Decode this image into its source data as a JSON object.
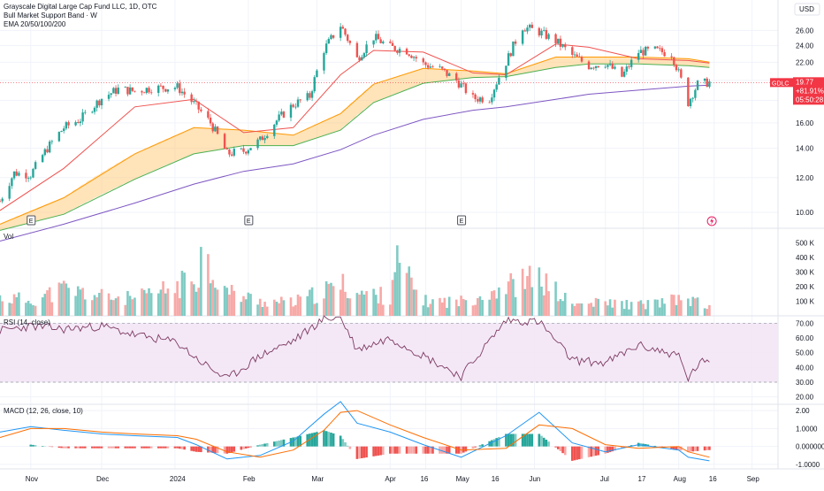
{
  "header": {
    "title": "Grayscale Digital Large Cap Fund LLC, 1D, OTC",
    "subtitle_1": "Bull Market Support Band · W",
    "subtitle_2": "EMA 20/50/100/200",
    "currency": "USD"
  },
  "colors": {
    "up": "#26a69a",
    "down": "#ef5350",
    "vol_up": "#80cbc4",
    "vol_down": "#f7a9a7",
    "ema20": "#ef5350",
    "ema50": "#ff9800",
    "ema100": "#4caf50",
    "ema200": "#7e57c2",
    "band_fill": "#ffcc80",
    "band_edge": "#26a69a",
    "rsi_line": "#7e3a63",
    "rsi_fill": "#f3e5f5",
    "macd_line": "#2196f3",
    "signal_line": "#ff6d00",
    "last_price": "#f23645",
    "grid": "#f0f3fa",
    "axis_text": "#131722"
  },
  "last_price_label": {
    "ticker": "GDLC",
    "price": "19.77",
    "change": "+81.91%",
    "countdown": "05:50:28"
  },
  "earnings_markers": [
    {
      "label": "E",
      "date": "2023-11-01"
    },
    {
      "label": "E",
      "date": "2024-02-01"
    },
    {
      "label": "E",
      "date": "2024-05-01"
    }
  ],
  "event_marker": {
    "icon": "lightning-icon",
    "date": "2024-08-15"
  },
  "time_axis": {
    "labels": [
      {
        "text": "Nov",
        "date": "2023-11-01"
      },
      {
        "text": "Dec",
        "date": "2023-12-01"
      },
      {
        "text": "2024",
        "date": "2024-01-01"
      },
      {
        "text": "Feb",
        "date": "2024-02-01"
      },
      {
        "text": "Mar",
        "date": "2024-03-01"
      },
      {
        "text": "Apr",
        "date": "2024-04-01"
      },
      {
        "text": "16",
        "date": "2024-04-16"
      },
      {
        "text": "May",
        "date": "2024-05-01"
      },
      {
        "text": "16",
        "date": "2024-05-16"
      },
      {
        "text": "Jun",
        "date": "2024-06-01"
      },
      {
        "text": "Jul",
        "date": "2024-07-01"
      },
      {
        "text": "17",
        "date": "2024-07-17"
      },
      {
        "text": "Aug",
        "date": "2024-08-01"
      },
      {
        "text": "16",
        "date": "2024-08-16"
      },
      {
        "text": "Sep",
        "date": "2024-09-01"
      }
    ]
  },
  "chart_data": [
    {
      "type": "candlestick",
      "pane": "price",
      "x_start": "2023-10-19",
      "x_end": "2024-09-12",
      "scale": "log",
      "ylim": [
        9.2,
        30.5
      ],
      "y_ticks": [
        10.0,
        12.0,
        14.0,
        16.0,
        18.0,
        20.0,
        22.0,
        24.0,
        26.0
      ],
      "y_tick_labels": [
        "10.00",
        "12.00",
        "14.00",
        "16.00",
        "18.00",
        "20.00",
        "22.00",
        "24.00",
        "26.00"
      ],
      "close_series": {
        "x": [
          "2023-10-19",
          "2023-10-25",
          "2023-11-01",
          "2023-11-08",
          "2023-11-15",
          "2023-11-22",
          "2023-12-01",
          "2023-12-08",
          "2023-12-15",
          "2023-12-22",
          "2024-01-02",
          "2024-01-09",
          "2024-01-16",
          "2024-01-23",
          "2024-01-30",
          "2024-02-06",
          "2024-02-13",
          "2024-02-20",
          "2024-02-27",
          "2024-03-04",
          "2024-03-11",
          "2024-03-18",
          "2024-03-25",
          "2024-04-01",
          "2024-04-08",
          "2024-04-15",
          "2024-04-22",
          "2024-04-29",
          "2024-05-06",
          "2024-05-13",
          "2024-05-20",
          "2024-05-27",
          "2024-06-03",
          "2024-06-10",
          "2024-06-17",
          "2024-06-24",
          "2024-07-01",
          "2024-07-08",
          "2024-07-15",
          "2024-07-22",
          "2024-07-29",
          "2024-08-05",
          "2024-08-09",
          "2024-08-14"
        ],
        "y": [
          10.6,
          12.3,
          12.2,
          14.0,
          15.6,
          16.3,
          18.2,
          19.1,
          18.9,
          19.2,
          19.3,
          17.7,
          16.0,
          13.6,
          13.8,
          14.6,
          16.2,
          17.6,
          18.4,
          23.5,
          26.7,
          22.4,
          25.1,
          23.8,
          23.4,
          21.8,
          21.2,
          20.0,
          18.2,
          18.2,
          22.0,
          26.5,
          25.8,
          24.6,
          22.8,
          21.6,
          21.9,
          20.4,
          23.2,
          23.4,
          23.0,
          17.8,
          19.6,
          19.8
        ]
      },
      "last_price": 19.77
    },
    {
      "type": "line",
      "pane": "price",
      "series": [
        {
          "name": "EMA 20",
          "x": [
            "2023-10-19",
            "2023-11-15",
            "2023-12-15",
            "2024-01-09",
            "2024-01-30",
            "2024-02-20",
            "2024-03-11",
            "2024-03-25",
            "2024-04-15",
            "2024-05-06",
            "2024-05-20",
            "2024-06-10",
            "2024-06-24",
            "2024-07-15",
            "2024-08-05",
            "2024-08-14"
          ],
          "y": [
            10.1,
            12.6,
            17.4,
            18.1,
            15.2,
            15.6,
            20.6,
            23.4,
            23.2,
            20.8,
            20.6,
            24.2,
            23.8,
            22.4,
            22.2,
            21.9
          ]
        },
        {
          "name": "EMA 50",
          "x": [
            "2023-10-19",
            "2023-11-15",
            "2023-12-15",
            "2024-01-09",
            "2024-01-30",
            "2024-02-20",
            "2024-03-11",
            "2024-03-25",
            "2024-04-15",
            "2024-05-06",
            "2024-05-20",
            "2024-06-10",
            "2024-06-24",
            "2024-07-15",
            "2024-08-05",
            "2024-08-14"
          ],
          "y": [
            9.4,
            10.8,
            13.6,
            15.6,
            15.4,
            15.0,
            16.8,
            19.6,
            21.3,
            21.0,
            20.7,
            22.6,
            22.6,
            22.6,
            22.4,
            22.0
          ]
        },
        {
          "name": "EMA 100",
          "x": [
            "2023-10-19",
            "2023-11-15",
            "2023-12-15",
            "2024-01-09",
            "2024-01-30",
            "2024-02-20",
            "2024-03-11",
            "2024-03-25",
            "2024-04-15",
            "2024-05-06",
            "2024-05-20",
            "2024-06-10",
            "2024-06-24",
            "2024-07-15",
            "2024-08-05",
            "2024-08-14"
          ],
          "y": [
            9.1,
            9.9,
            11.9,
            13.6,
            14.2,
            14.2,
            15.4,
            17.8,
            19.7,
            20.3,
            20.4,
            21.4,
            21.8,
            21.8,
            21.6,
            21.4
          ]
        },
        {
          "name": "EMA 200",
          "x": [
            "2023-10-19",
            "2023-11-15",
            "2023-12-15",
            "2024-01-09",
            "2024-01-30",
            "2024-02-20",
            "2024-03-11",
            "2024-03-25",
            "2024-04-15",
            "2024-05-06",
            "2024-05-20",
            "2024-06-10",
            "2024-06-24",
            "2024-07-15",
            "2024-08-05",
            "2024-08-14"
          ],
          "y": [
            8.6,
            9.4,
            10.5,
            11.6,
            12.4,
            12.9,
            13.9,
            15.0,
            16.3,
            17.1,
            17.4,
            18.1,
            18.6,
            19.0,
            19.4,
            19.5
          ]
        }
      ]
    },
    {
      "type": "bar",
      "pane": "volume",
      "ylim": [
        0,
        600000
      ],
      "y_ticks": [
        100000,
        200000,
        300000,
        400000,
        500000
      ],
      "y_tick_labels": [
        "100 K",
        "200 K",
        "300 K",
        "400 K",
        "500 K"
      ],
      "x": [
        "2023-10-19",
        "2023-11-01",
        "2023-11-15",
        "2023-12-01",
        "2023-12-15",
        "2024-01-02",
        "2024-01-10",
        "2024-01-12",
        "2024-01-23",
        "2024-02-06",
        "2024-02-20",
        "2024-03-04",
        "2024-03-11",
        "2024-03-18",
        "2024-04-01",
        "2024-04-03",
        "2024-04-15",
        "2024-05-01",
        "2024-05-20",
        "2024-06-03",
        "2024-06-17",
        "2024-07-01",
        "2024-07-15",
        "2024-08-05",
        "2024-08-14"
      ],
      "values": [
        150000,
        130000,
        220000,
        160000,
        140000,
        240000,
        330000,
        510000,
        200000,
        120000,
        110000,
        200000,
        260000,
        190000,
        160000,
        460000,
        120000,
        120000,
        250000,
        310000,
        90000,
        110000,
        90000,
        140000,
        70000
      ]
    },
    {
      "type": "line",
      "pane": "rsi",
      "title": "RSI (14, close)",
      "ylim": [
        15,
        75
      ],
      "y_ticks": [
        20,
        30,
        40,
        50,
        60,
        70
      ],
      "y_tick_labels": [
        "20.00",
        "30.00",
        "40.00",
        "50.00",
        "60.00",
        "70.00"
      ],
      "band": [
        30,
        70
      ],
      "series": [
        {
          "name": "RSI",
          "x": [
            "2023-10-19",
            "2023-11-01",
            "2023-11-15",
            "2023-12-01",
            "2023-12-15",
            "2024-01-02",
            "2024-01-10",
            "2024-01-23",
            "2024-02-06",
            "2024-02-20",
            "2024-03-04",
            "2024-03-11",
            "2024-03-18",
            "2024-04-01",
            "2024-04-15",
            "2024-05-01",
            "2024-05-20",
            "2024-06-03",
            "2024-06-17",
            "2024-07-01",
            "2024-07-15",
            "2024-08-01",
            "2024-08-05",
            "2024-08-10",
            "2024-08-14"
          ],
          "y": [
            65,
            68,
            66,
            68,
            62,
            57,
            46,
            32,
            48,
            58,
            73,
            74,
            52,
            60,
            48,
            34,
            72,
            71,
            45,
            43,
            55,
            48,
            32,
            44,
            42
          ]
        }
      ]
    },
    {
      "type": "line",
      "pane": "macd",
      "title": "MACD (12, 26, close, 10)",
      "ylim": [
        -1.25,
        2.35
      ],
      "y_ticks": [
        -1.0,
        0.0,
        1.0,
        2.0
      ],
      "y_tick_labels": [
        "-1.0000",
        "0.000000",
        "1.0000",
        "2.00"
      ],
      "series": [
        {
          "name": "MACD",
          "x": [
            "2023-10-19",
            "2023-11-01",
            "2023-11-15",
            "2023-12-01",
            "2023-12-15",
            "2024-01-02",
            "2024-01-10",
            "2024-01-23",
            "2024-02-06",
            "2024-02-20",
            "2024-03-04",
            "2024-03-11",
            "2024-03-18",
            "2024-04-01",
            "2024-04-15",
            "2024-05-01",
            "2024-05-20",
            "2024-06-03",
            "2024-06-17",
            "2024-07-01",
            "2024-07-15",
            "2024-08-01",
            "2024-08-05",
            "2024-08-14"
          ],
          "y": [
            0.8,
            1.1,
            0.9,
            0.7,
            0.6,
            0.5,
            0.1,
            -0.7,
            -0.5,
            0.3,
            1.8,
            2.5,
            1.3,
            0.8,
            0.1,
            -0.6,
            0.6,
            1.9,
            0.2,
            -0.3,
            0.1,
            -0.2,
            -0.6,
            -0.8
          ]
        },
        {
          "name": "Signal",
          "x": [
            "2023-10-19",
            "2023-11-01",
            "2023-11-15",
            "2023-12-01",
            "2023-12-15",
            "2024-01-02",
            "2024-01-10",
            "2024-01-23",
            "2024-02-06",
            "2024-02-20",
            "2024-03-04",
            "2024-03-11",
            "2024-03-18",
            "2024-04-01",
            "2024-04-15",
            "2024-05-01",
            "2024-05-20",
            "2024-06-03",
            "2024-06-17",
            "2024-07-01",
            "2024-07-15",
            "2024-08-01",
            "2024-08-05",
            "2024-08-14"
          ],
          "y": [
            0.5,
            1.0,
            1.0,
            0.8,
            0.7,
            0.6,
            0.4,
            -0.3,
            -0.6,
            -0.2,
            0.9,
            1.9,
            2.0,
            1.2,
            0.5,
            -0.2,
            -0.1,
            1.2,
            1.0,
            0.1,
            -0.1,
            0.0,
            -0.3,
            -0.6
          ]
        }
      ],
      "histogram": {
        "x": [
          "2023-11-01",
          "2023-11-15",
          "2023-12-01",
          "2023-12-15",
          "2024-01-02",
          "2024-01-10",
          "2024-01-23",
          "2024-02-06",
          "2024-02-20",
          "2024-03-04",
          "2024-03-11",
          "2024-03-18",
          "2024-04-01",
          "2024-04-15",
          "2024-05-01",
          "2024-05-20",
          "2024-06-03",
          "2024-06-17",
          "2024-07-01",
          "2024-07-15",
          "2024-08-01",
          "2024-08-05",
          "2024-08-14"
        ],
        "values": [
          0.1,
          -0.1,
          -0.1,
          -0.1,
          -0.1,
          -0.3,
          -0.4,
          0.1,
          0.5,
          0.9,
          0.6,
          -0.7,
          -0.4,
          -0.4,
          -0.4,
          0.7,
          0.7,
          -0.8,
          -0.4,
          0.2,
          -0.2,
          -0.3,
          -0.2
        ]
      }
    }
  ]
}
